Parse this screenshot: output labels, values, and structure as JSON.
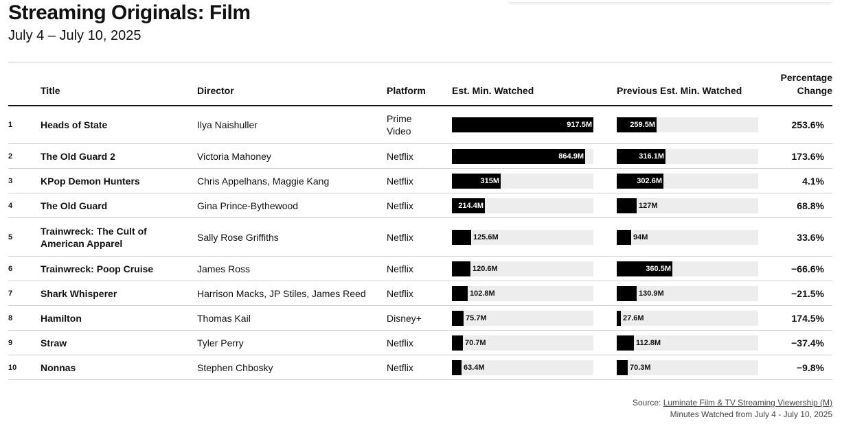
{
  "header": {
    "title": "Streaming Originals: Film",
    "subtitle": "July 4 – July 10, 2025"
  },
  "table": {
    "columns": {
      "rank": "",
      "title": "Title",
      "director": "Director",
      "platform": "Platform",
      "current": "Est. Min. Watched",
      "previous": "Previous Est. Min. Watched",
      "change": "Percentage Change"
    }
  },
  "chart_data": {
    "type": "table",
    "bar_max": 917.5,
    "unit": "M",
    "rows": [
      {
        "rank": "1",
        "title": "Heads of State",
        "director": "Ilya Naishuller",
        "platform": "Prime Video",
        "current": 917.5,
        "current_label": "917.5M",
        "previous": 259.5,
        "previous_label": "259.5M",
        "change": "253.6%"
      },
      {
        "rank": "2",
        "title": "The Old Guard 2",
        "director": "Victoria Mahoney",
        "platform": "Netflix",
        "current": 864.9,
        "current_label": "864.9M",
        "previous": 316.1,
        "previous_label": "316.1M",
        "change": "173.6%"
      },
      {
        "rank": "3",
        "title": "KPop Demon Hunters",
        "director": "Chris Appelhans, Maggie Kang",
        "platform": "Netflix",
        "current": 315,
        "current_label": "315M",
        "previous": 302.6,
        "previous_label": "302.6M",
        "change": "4.1%"
      },
      {
        "rank": "4",
        "title": "The Old Guard",
        "director": "Gina Prince-Bythewood",
        "platform": "Netflix",
        "current": 214.4,
        "current_label": "214.4M",
        "previous": 127,
        "previous_label": "127M",
        "change": "68.8%"
      },
      {
        "rank": "5",
        "title": "Trainwreck: The Cult of American Apparel",
        "director": "Sally Rose Griffiths",
        "platform": "Netflix",
        "current": 125.6,
        "current_label": "125.6M",
        "previous": 94,
        "previous_label": "94M",
        "change": "33.6%"
      },
      {
        "rank": "6",
        "title": "Trainwreck: Poop Cruise",
        "director": "James Ross",
        "platform": "Netflix",
        "current": 120.6,
        "current_label": "120.6M",
        "previous": 360.5,
        "previous_label": "360.5M",
        "change": "−66.6%"
      },
      {
        "rank": "7",
        "title": "Shark Whisperer",
        "director": "Harrison Macks, JP Stiles, James Reed",
        "platform": "Netflix",
        "current": 102.8,
        "current_label": "102.8M",
        "previous": 130.9,
        "previous_label": "130.9M",
        "change": "−21.5%"
      },
      {
        "rank": "8",
        "title": "Hamilton",
        "director": "Thomas Kail",
        "platform": "Disney+",
        "current": 75.7,
        "current_label": "75.7M",
        "previous": 27.6,
        "previous_label": "27.6M",
        "change": "174.5%"
      },
      {
        "rank": "9",
        "title": "Straw",
        "director": "Tyler Perry",
        "platform": "Netflix",
        "current": 70.7,
        "current_label": "70.7M",
        "previous": 112.8,
        "previous_label": "112.8M",
        "change": "−37.4%"
      },
      {
        "rank": "10",
        "title": "Nonnas",
        "director": "Stephen Chbosky",
        "platform": "Netflix",
        "current": 63.4,
        "current_label": "63.4M",
        "previous": 70.3,
        "previous_label": "70.3M",
        "change": "−9.8%"
      }
    ]
  },
  "footer": {
    "source_prefix": "Source: ",
    "source_link": "Luminate Film & TV Streaming Viewership (M)",
    "note": "Minutes Watched from July 4 - July 10, 2025"
  }
}
